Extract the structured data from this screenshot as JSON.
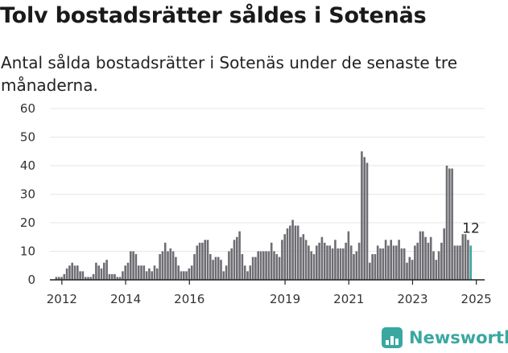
{
  "header": {
    "title": "Tolv bostadsrätter såldes i Sotenäs",
    "subtitle": "Antal sålda bostadsrätter i Sotenäs under de senaste tre månaderna."
  },
  "chart_data": {
    "type": "bar",
    "title": "Tolv bostadsrätter såldes i Sotenäs",
    "subtitle": "Antal sålda bostadsrätter i Sotenäs under de senaste tre månaderna.",
    "xlabel": "",
    "ylabel": "",
    "ylim": [
      0,
      60
    ],
    "yticks": [
      0,
      10,
      20,
      30,
      40,
      50,
      60
    ],
    "grid": true,
    "start": "2011-09",
    "x_tick_labels": [
      {
        "label": "2012",
        "month": "2012-01"
      },
      {
        "label": "2014",
        "month": "2014-01"
      },
      {
        "label": "2016",
        "month": "2016-01"
      },
      {
        "label": "2019",
        "month": "2019-01"
      },
      {
        "label": "2021",
        "month": "2021-01"
      },
      {
        "label": "2023",
        "month": "2023-01"
      },
      {
        "label": "2025",
        "month": "2025-01"
      }
    ],
    "last_value_label": "12",
    "bar_color": "#6e6d73",
    "highlight_color": "#3aa8a0",
    "values": [
      0,
      0,
      1,
      1,
      1,
      2,
      4,
      5,
      6,
      5,
      5,
      3,
      3,
      1,
      1,
      1,
      2,
      6,
      5,
      4,
      6,
      7,
      2,
      2,
      2,
      1,
      1,
      3,
      5,
      6,
      10,
      10,
      9,
      5,
      5,
      5,
      3,
      4,
      3,
      5,
      4,
      9,
      10,
      13,
      10,
      11,
      10,
      8,
      5,
      3,
      3,
      3,
      4,
      5,
      9,
      12,
      13,
      13,
      14,
      14,
      9,
      7,
      8,
      8,
      7,
      3,
      5,
      10,
      11,
      14,
      15,
      17,
      9,
      5,
      3,
      5,
      8,
      8,
      10,
      10,
      10,
      10,
      10,
      13,
      10,
      9,
      8,
      14,
      16,
      18,
      19,
      21,
      19,
      19,
      15,
      16,
      14,
      12,
      10,
      9,
      12,
      13,
      15,
      13,
      12,
      12,
      11,
      14,
      11,
      11,
      11,
      13,
      17,
      12,
      9,
      10,
      13,
      45,
      43,
      41,
      6,
      9,
      9,
      12,
      11,
      11,
      14,
      12,
      14,
      12,
      12,
      14,
      11,
      11,
      6,
      8,
      7,
      12,
      13,
      17,
      17,
      15,
      13,
      15,
      10,
      7,
      10,
      13,
      18,
      40,
      39,
      39,
      12,
      12,
      12,
      16,
      16,
      14,
      12
    ]
  },
  "brand": {
    "name": "Newsworthy",
    "icon": "bar-chart-icon"
  }
}
